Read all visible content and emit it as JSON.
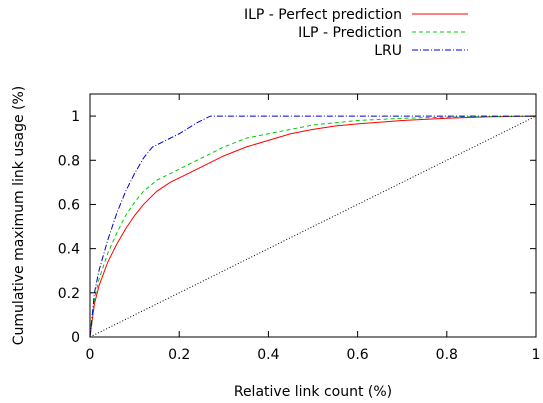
{
  "chart_data": {
    "type": "line",
    "title": "",
    "xlabel": "Relative link count (%)",
    "ylabel": "Cumulative maximum link usage (%)",
    "xlim": [
      0,
      1
    ],
    "ylim": [
      0,
      1.1
    ],
    "xticks": [
      0,
      0.2,
      0.4,
      0.6,
      0.8,
      1
    ],
    "yticks": [
      0,
      0.2,
      0.4,
      0.6,
      0.8,
      1
    ],
    "xtick_labels": [
      "0",
      "0.2",
      "0.4",
      "0.6",
      "0.8",
      "1"
    ],
    "ytick_labels": [
      "0",
      "0.2",
      "0.4",
      "0.6",
      "0.8",
      "1"
    ],
    "legend_position": "top-right, above plot",
    "grid": false,
    "series": [
      {
        "name": "ILP - Perfect prediction",
        "color": "#ff0000",
        "dash": "solid",
        "x": [
          0,
          0.01,
          0.02,
          0.04,
          0.06,
          0.08,
          0.1,
          0.12,
          0.15,
          0.18,
          0.2,
          0.25,
          0.3,
          0.35,
          0.4,
          0.45,
          0.5,
          0.55,
          0.6,
          0.7,
          0.8,
          0.9,
          1.0
        ],
        "y": [
          0,
          0.15,
          0.23,
          0.34,
          0.42,
          0.49,
          0.55,
          0.6,
          0.66,
          0.7,
          0.72,
          0.77,
          0.82,
          0.86,
          0.89,
          0.92,
          0.94,
          0.955,
          0.965,
          0.98,
          0.99,
          0.997,
          1.0
        ]
      },
      {
        "name": "ILP - Prediction",
        "color": "#00cc00",
        "dash": "dashed",
        "x": [
          0,
          0.01,
          0.02,
          0.04,
          0.06,
          0.08,
          0.1,
          0.12,
          0.15,
          0.18,
          0.2,
          0.25,
          0.3,
          0.35,
          0.4,
          0.45,
          0.5,
          0.55,
          0.6,
          0.7,
          0.8,
          0.9,
          1.0
        ],
        "y": [
          0,
          0.17,
          0.26,
          0.38,
          0.47,
          0.55,
          0.61,
          0.66,
          0.71,
          0.74,
          0.76,
          0.81,
          0.86,
          0.9,
          0.92,
          0.94,
          0.96,
          0.97,
          0.98,
          0.99,
          0.995,
          0.998,
          1.0
        ]
      },
      {
        "name": "LRU",
        "color": "#0000cc",
        "dash": "dash-dot",
        "x": [
          0,
          0.01,
          0.02,
          0.04,
          0.06,
          0.08,
          0.1,
          0.12,
          0.14,
          0.17,
          0.2,
          0.24,
          0.27,
          0.3,
          0.4,
          0.6,
          0.8,
          1.0
        ],
        "y": [
          0,
          0.2,
          0.3,
          0.44,
          0.56,
          0.66,
          0.74,
          0.81,
          0.86,
          0.89,
          0.92,
          0.97,
          1.0,
          1.0,
          1.0,
          1.0,
          1.0,
          1.0
        ]
      },
      {
        "name": "",
        "color": "#000000",
        "dash": "dotted",
        "x": [
          0,
          1
        ],
        "y": [
          0,
          1
        ]
      }
    ]
  }
}
